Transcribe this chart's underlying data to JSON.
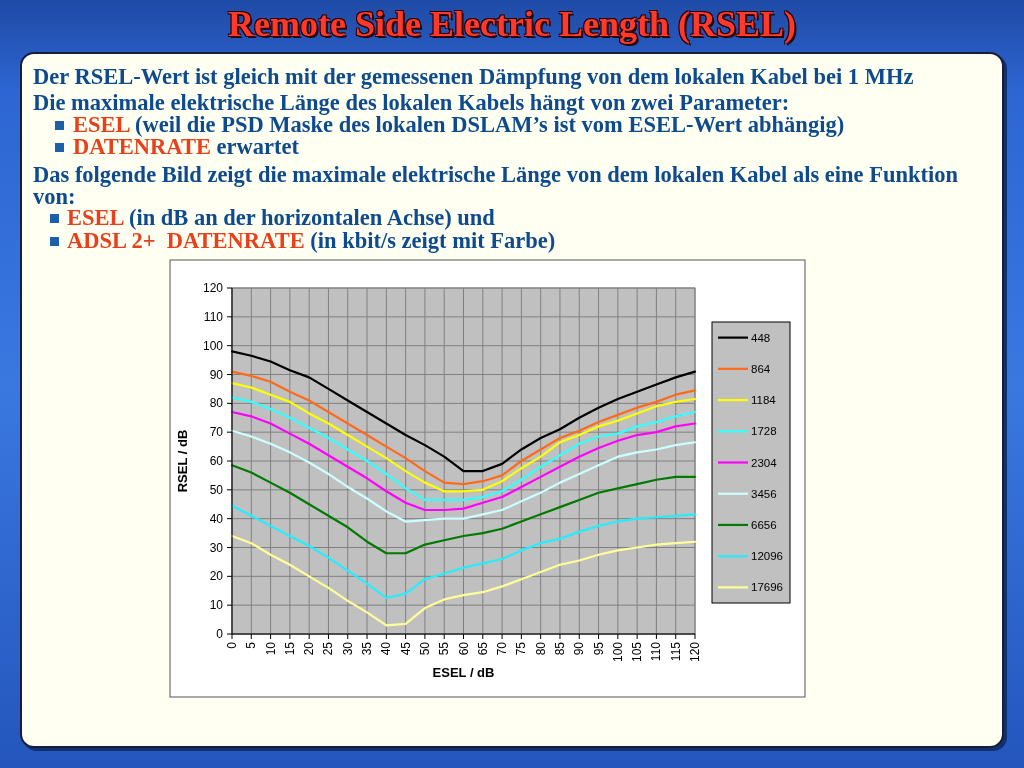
{
  "chart_data": {
    "type": "line",
    "title": "Remote Side Electric Length (RSEL)",
    "annotations": [
      "Der RSEL-Wert ist gleich mit der gemessenen Dämpfung von dem lokalen Kabel bei 1 MHz",
      "Die maximale elektrische Länge des lokalen Kabels hängt von zwei Parameter:",
      "ESEL",
      "(weil die PSD Maske des lokalen DSLAM’s ist vom ESEL-Wert abhängig)",
      "DATENRATE",
      "erwartet",
      "Das folgende Bild zeigt die maximale elektrische Länge von dem lokalen Kabel als eine Funktion von:",
      "ESEL",
      "(in dB an der horizontalen Achse) und",
      "ADSL 2+  DATENRATE",
      "(in kbit/s zeigt mit Farbe)"
    ],
    "xlabel": "ESEL / dB",
    "ylabel": "RSEL / dB",
    "x": [
      0,
      5,
      10,
      15,
      20,
      25,
      30,
      35,
      40,
      45,
      50,
      55,
      60,
      65,
      70,
      75,
      80,
      85,
      90,
      95,
      100,
      105,
      110,
      115,
      120
    ],
    "xlim": [
      0,
      120
    ],
    "xticks": [
      0,
      5,
      10,
      15,
      20,
      25,
      30,
      35,
      40,
      45,
      50,
      55,
      60,
      65,
      70,
      75,
      80,
      85,
      90,
      95,
      100,
      105,
      110,
      115,
      120
    ],
    "ylim": [
      0,
      120
    ],
    "yticks": [
      0,
      10,
      20,
      30,
      40,
      50,
      60,
      70,
      80,
      90,
      100,
      110,
      120
    ],
    "grid": true,
    "legend": "right",
    "series": [
      {
        "name": "448",
        "color": "#000000",
        "values": [
          98,
          96.5,
          94.5,
          91.5,
          89,
          85,
          81,
          77,
          73,
          69,
          65.5,
          61.5,
          56.5,
          56.5,
          59,
          64,
          68,
          71,
          75,
          78.5,
          81.5,
          84,
          86.5,
          89,
          91
        ]
      },
      {
        "name": "864",
        "color": "#ff6a1a",
        "values": [
          91,
          89.5,
          87.5,
          84,
          81,
          77,
          73,
          69,
          65,
          61,
          56.5,
          52.5,
          52,
          53,
          55,
          60,
          64,
          68,
          70.5,
          73.5,
          76,
          78.5,
          80.5,
          83,
          84.5
        ]
      },
      {
        "name": "1184",
        "color": "#ffff00",
        "values": [
          87,
          85.5,
          83,
          80.5,
          76.5,
          73,
          69,
          65,
          61,
          56.5,
          52.5,
          49.5,
          49.5,
          50,
          53,
          57.5,
          61.5,
          66.5,
          69,
          72,
          74,
          76.5,
          79,
          80.5,
          81.5
        ]
      },
      {
        "name": "1728",
        "color": "#33ffff",
        "values": [
          82,
          80.5,
          78,
          75,
          71.5,
          68,
          64,
          60,
          55.5,
          50.5,
          46.5,
          46.5,
          46.5,
          47.5,
          49.5,
          53.5,
          58,
          62,
          66,
          68.5,
          69.5,
          72,
          73.5,
          75.5,
          77
        ]
      },
      {
        "name": "2304",
        "color": "#ff00ff",
        "values": [
          77,
          75.5,
          73,
          69.5,
          66,
          62,
          58,
          54,
          49.5,
          45.5,
          43,
          43,
          43.5,
          45.5,
          47.5,
          51,
          54.5,
          58,
          61.5,
          64.5,
          67,
          69,
          70,
          72,
          73
        ]
      },
      {
        "name": "3456",
        "color": "#ccffff",
        "values": [
          70.5,
          68.5,
          66,
          63,
          59.5,
          55.5,
          51,
          47,
          42.5,
          39,
          39.5,
          40,
          40,
          41.5,
          43,
          46,
          49,
          52.5,
          55.5,
          58.5,
          61.5,
          63,
          64,
          65.5,
          66.5
        ]
      },
      {
        "name": "6656",
        "color": "#007a00",
        "values": [
          58.5,
          56,
          52.5,
          49,
          45,
          41,
          37,
          32,
          28,
          28,
          31,
          32.5,
          34,
          35,
          36.5,
          39,
          41.5,
          44,
          46.5,
          49,
          50.5,
          52,
          53.5,
          54.5,
          54.5
        ]
      },
      {
        "name": "12096",
        "color": "#22eeff",
        "values": [
          44.5,
          41,
          37.5,
          34,
          30.5,
          26.5,
          22,
          17.5,
          12.5,
          14,
          19,
          21,
          23,
          24.5,
          26,
          29,
          31.5,
          33,
          35.5,
          37.5,
          39,
          40,
          40.5,
          41,
          41.5
        ]
      },
      {
        "name": "17696",
        "color": "#ffff99",
        "values": [
          34,
          31.5,
          27.5,
          24,
          20,
          16,
          11.5,
          7.5,
          3,
          3.5,
          9,
          12,
          13.5,
          14.5,
          16.5,
          19,
          21.5,
          24,
          25.5,
          27.5,
          29,
          30,
          31,
          31.5,
          32
        ]
      }
    ]
  }
}
